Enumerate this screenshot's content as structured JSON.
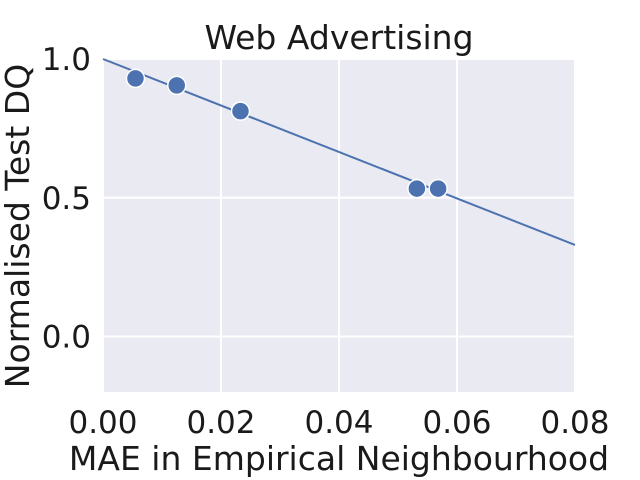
{
  "chart_data": {
    "type": "scatter",
    "title": "Web Advertising",
    "xlabel": "MAE in Empirical Neighbourhood",
    "ylabel": "Normalised Test DQ",
    "xlim": [
      0.0,
      0.08
    ],
    "ylim": [
      -0.2,
      1.0
    ],
    "x_ticks": [
      "0.00",
      "0.02",
      "0.04",
      "0.06",
      "0.08"
    ],
    "y_ticks": [
      "0.0",
      "0.5",
      "1.0"
    ],
    "grid": true,
    "legend": "none",
    "colors": {
      "background": "#eaeaf2",
      "grid": "#ffffff",
      "series": "#4c72b0"
    },
    "points": [
      {
        "x": 0.0055,
        "y": 0.93
      },
      {
        "x": 0.0125,
        "y": 0.905
      },
      {
        "x": 0.0233,
        "y": 0.812
      },
      {
        "x": 0.0532,
        "y": 0.533
      },
      {
        "x": 0.0568,
        "y": 0.533
      }
    ],
    "fit_line": {
      "x": [
        0.0,
        0.08
      ],
      "y": [
        1.0,
        0.33
      ]
    }
  }
}
